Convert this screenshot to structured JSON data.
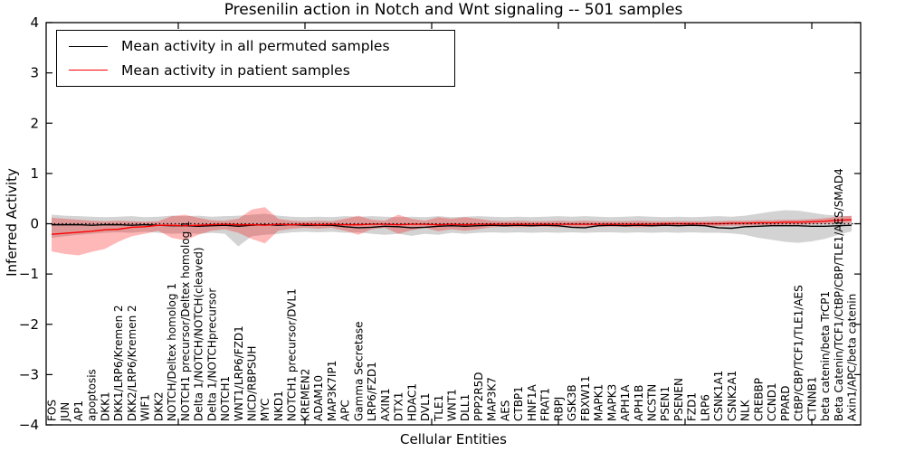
{
  "chart": {
    "title": "Presenilin action in Notch and Wnt signaling -- 501 samples",
    "xlabel": "Cellular Entities",
    "ylabel": "Inferred Activity"
  },
  "legend": {
    "items": [
      {
        "label": "Mean activity in all permuted samples",
        "color": "#000000"
      },
      {
        "label": "Mean activity in patient samples",
        "color": "#ff0000"
      }
    ]
  },
  "chart_data": {
    "type": "line",
    "title": "Presenilin action in Notch and Wnt signaling -- 501 samples",
    "xlabel": "Cellular Entities",
    "ylabel": "Inferred Activity",
    "ylim": [
      -4,
      4
    ],
    "yticks": [
      4,
      3,
      2,
      1,
      0,
      -1,
      -2,
      -3,
      -4
    ],
    "grid": false,
    "legend_position": "upper left",
    "zero_line": {
      "style": "dotted",
      "color": "#000000",
      "y": 0
    },
    "categories": [
      "FOS",
      "JUN",
      "AP1",
      "apoptosis",
      "DKK1",
      "DKK1/LRP6/Kremen 2",
      "DKK2/LRP6/Kremen 2",
      "WIF1",
      "DKK2",
      "NOTCH/Deltex homolog 1",
      "NOTCH1 precursor/Deltex homolog 1",
      "Delta 1/NOTCH/NOTCH(cleaved)",
      "Delta 1/NOTCHprecursor",
      "NOTCH1",
      "WNT1/LRP6/FZD1",
      "NICD/RBPSUH",
      "MYC",
      "NKD1",
      "NOTCH1 precursor/DVL1",
      "KREMEN2",
      "ADAM10",
      "MAP3K7IP1",
      "APC",
      "Gamma Secretase",
      "LRP6/FZD1",
      "AXIN1",
      "DTX1",
      "HDAC1",
      "DVL1",
      "TLE1",
      "WNT1",
      "DLL1",
      "PPP2R5D",
      "MAP3K7",
      "AES",
      "CTBP1",
      "HNF1A",
      "FRAT1",
      "RBPJ",
      "GSK3B",
      "FBXW11",
      "MAPK1",
      "MAPK3",
      "APH1A",
      "APH1B",
      "NCSTN",
      "PSEN1",
      "PSENEN",
      "FZD1",
      "LRP6",
      "CSNK1A1",
      "CSNK2A1",
      "NLK",
      "CREBBP",
      "CCND1",
      "PPARD",
      "CtBP/CBP/TCF1/TLE1/AES",
      "CTNNB1",
      "beta catenin/beta TrCP1",
      "Beta Catenin/TCF1/CtBP/CBP/TLE1/AES/SMAD4",
      "Axin1/APC/beta catenin"
    ],
    "series": [
      {
        "name": "Mean activity in all permuted samples",
        "color": "#000000",
        "band_color": "rgba(130,130,130,0.35)",
        "values": [
          -0.02,
          -0.02,
          -0.02,
          -0.03,
          -0.02,
          -0.02,
          -0.03,
          -0.02,
          -0.03,
          -0.04,
          -0.04,
          -0.05,
          -0.04,
          -0.03,
          -0.05,
          -0.03,
          -0.02,
          -0.03,
          -0.02,
          -0.03,
          -0.03,
          -0.03,
          -0.06,
          -0.08,
          -0.07,
          -0.05,
          -0.06,
          -0.08,
          -0.07,
          -0.05,
          -0.04,
          -0.05,
          -0.04,
          -0.03,
          -0.04,
          -0.03,
          -0.04,
          -0.03,
          -0.04,
          -0.07,
          -0.08,
          -0.04,
          -0.03,
          -0.04,
          -0.03,
          -0.04,
          -0.03,
          -0.04,
          -0.03,
          -0.04,
          -0.08,
          -0.09,
          -0.06,
          -0.05,
          -0.04,
          -0.04,
          -0.04,
          -0.05,
          -0.05,
          -0.04,
          -0.03
        ],
        "band_upper": [
          0.18,
          0.16,
          0.15,
          0.14,
          0.13,
          0.14,
          0.15,
          0.13,
          0.14,
          0.16,
          0.15,
          0.16,
          0.14,
          0.15,
          0.16,
          0.18,
          0.2,
          0.16,
          0.14,
          0.13,
          0.14,
          0.13,
          0.15,
          0.14,
          0.15,
          0.14,
          0.13,
          0.14,
          0.13,
          0.15,
          0.13,
          0.14,
          0.15,
          0.14,
          0.13,
          0.14,
          0.13,
          0.14,
          0.15,
          0.14,
          0.15,
          0.14,
          0.13,
          0.14,
          0.15,
          0.14,
          0.13,
          0.14,
          0.13,
          0.14,
          0.15,
          0.14,
          0.16,
          0.2,
          0.24,
          0.27,
          0.26,
          0.22,
          0.18,
          0.16,
          0.15
        ],
        "band_lower": [
          -0.28,
          -0.25,
          -0.22,
          -0.2,
          -0.18,
          -0.17,
          -0.18,
          -0.16,
          -0.18,
          -0.2,
          -0.19,
          -0.2,
          -0.18,
          -0.2,
          -0.45,
          -0.25,
          -0.22,
          -0.2,
          -0.17,
          -0.16,
          -0.17,
          -0.16,
          -0.18,
          -0.17,
          -0.2,
          -0.22,
          -0.2,
          -0.24,
          -0.2,
          -0.22,
          -0.18,
          -0.2,
          -0.18,
          -0.17,
          -0.18,
          -0.17,
          -0.18,
          -0.17,
          -0.18,
          -0.17,
          -0.18,
          -0.17,
          -0.17,
          -0.18,
          -0.17,
          -0.18,
          -0.17,
          -0.18,
          -0.17,
          -0.18,
          -0.18,
          -0.19,
          -0.22,
          -0.28,
          -0.32,
          -0.36,
          -0.38,
          -0.35,
          -0.3,
          -0.22,
          -0.15
        ]
      },
      {
        "name": "Mean activity in patient samples",
        "color": "#ff0000",
        "band_color": "rgba(255,0,0,0.28)",
        "values": [
          -0.21,
          -0.19,
          -0.17,
          -0.15,
          -0.12,
          -0.11,
          -0.07,
          -0.06,
          -0.03,
          -0.03,
          -0.04,
          -0.03,
          -0.02,
          -0.01,
          -0.02,
          -0.02,
          -0.03,
          -0.01,
          -0.02,
          -0.01,
          -0.02,
          -0.01,
          -0.02,
          -0.02,
          -0.01,
          -0.01,
          -0.02,
          -0.01,
          -0.01,
          -0.02,
          -0.01,
          -0.02,
          -0.01,
          -0.01,
          -0.01,
          -0.01,
          -0.01,
          -0.01,
          -0.01,
          -0.01,
          -0.01,
          -0.01,
          -0.01,
          -0.01,
          -0.01,
          -0.01,
          0,
          0,
          0,
          0,
          0,
          0.01,
          0.01,
          0.02,
          0.02,
          0.03,
          0.03,
          0.04,
          0.05,
          0.07,
          0.08
        ],
        "band_upper": [
          0.12,
          0.1,
          0.08,
          0.06,
          0.05,
          0.06,
          0.05,
          0.04,
          0.05,
          0.15,
          0.18,
          0.12,
          0.07,
          0.06,
          0.1,
          0.28,
          0.33,
          0.1,
          0.06,
          0.05,
          0.06,
          0.05,
          0.1,
          0.16,
          0.08,
          0.06,
          0.18,
          0.1,
          0.06,
          0.13,
          0.1,
          0.13,
          0.1,
          0.06,
          0.05,
          0.06,
          0.05,
          0.05,
          0.06,
          0.05,
          0.06,
          0.05,
          0.05,
          0.05,
          0.06,
          0.05,
          0.05,
          0.05,
          0.05,
          0.05,
          0.05,
          0.06,
          0.06,
          0.07,
          0.07,
          0.08,
          0.08,
          0.09,
          0.11,
          0.14,
          0.16
        ],
        "band_lower": [
          -0.55,
          -0.6,
          -0.63,
          -0.56,
          -0.5,
          -0.36,
          -0.25,
          -0.2,
          -0.14,
          -0.28,
          -0.33,
          -0.22,
          -0.14,
          -0.11,
          -0.18,
          -0.3,
          -0.39,
          -0.14,
          -0.1,
          -0.08,
          -0.1,
          -0.08,
          -0.14,
          -0.22,
          -0.11,
          -0.08,
          -0.2,
          -0.13,
          -0.08,
          -0.15,
          -0.11,
          -0.14,
          -0.11,
          -0.07,
          -0.06,
          -0.07,
          -0.06,
          -0.06,
          -0.07,
          -0.06,
          -0.07,
          -0.06,
          -0.06,
          -0.06,
          -0.07,
          -0.06,
          -0.05,
          -0.05,
          -0.05,
          -0.05,
          -0.05,
          -0.04,
          -0.04,
          -0.03,
          -0.03,
          -0.02,
          -0.02,
          -0.01,
          0,
          0.01,
          0.02
        ]
      }
    ]
  }
}
